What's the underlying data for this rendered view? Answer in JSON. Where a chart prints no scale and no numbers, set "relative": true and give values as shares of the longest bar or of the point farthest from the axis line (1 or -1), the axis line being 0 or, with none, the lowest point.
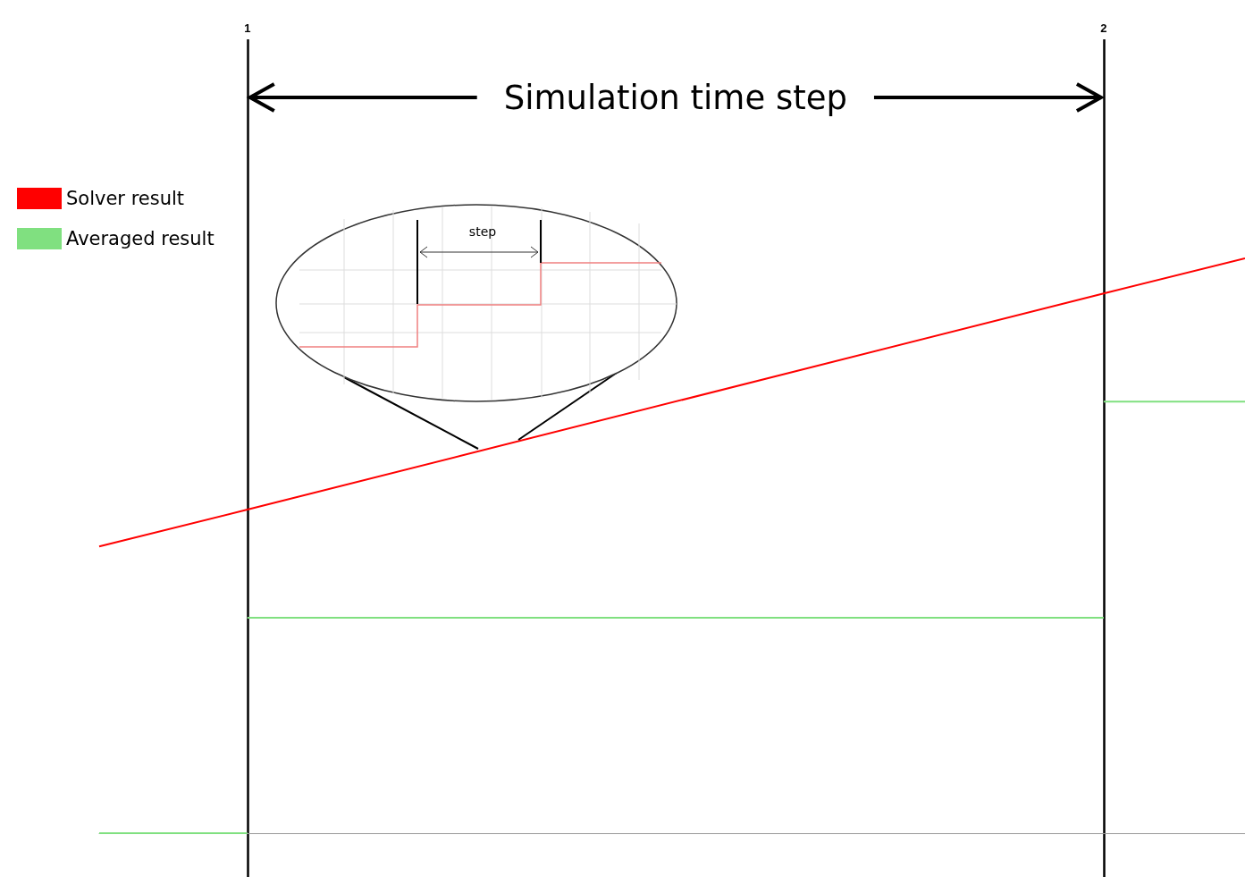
{
  "chart_data": {
    "type": "line",
    "title": "Simulation time step",
    "relative": true,
    "xlim": [
      0.827,
      2.165
    ],
    "xticks": [
      1,
      2
    ],
    "grid": "x",
    "legend": "top left",
    "annotations": [
      "step"
    ],
    "series": [
      {
        "name": "Solver result",
        "color": "#ff0000",
        "x": [
          0.827,
          1,
          2,
          2.165
        ],
        "values": [
          0.499,
          0.563,
          0.939,
          1.0
        ]
      },
      {
        "name": "Averaged result",
        "color": "#80e080",
        "x": [
          0.827,
          1,
          null,
          1,
          2,
          null,
          2,
          2.165
        ],
        "values": [
          0,
          0,
          null,
          0.375,
          0.375,
          null,
          0.751,
          0.751
        ]
      }
    ]
  }
}
